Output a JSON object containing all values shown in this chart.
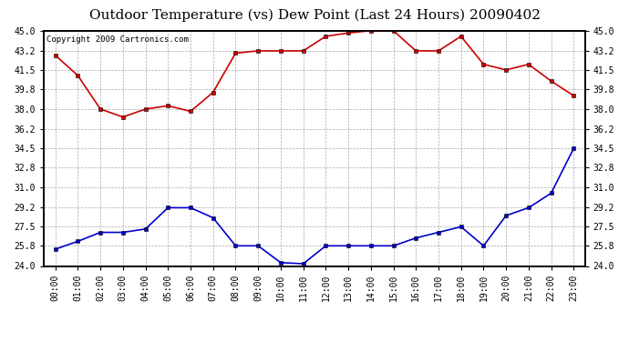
{
  "title": "Outdoor Temperature (vs) Dew Point (Last 24 Hours) 20090402",
  "copyright_text": "Copyright 2009 Cartronics.com",
  "x_labels": [
    "00:00",
    "01:00",
    "02:00",
    "03:00",
    "04:00",
    "05:00",
    "06:00",
    "07:00",
    "08:00",
    "09:00",
    "10:00",
    "11:00",
    "12:00",
    "13:00",
    "14:00",
    "15:00",
    "16:00",
    "17:00",
    "18:00",
    "19:00",
    "20:00",
    "21:00",
    "22:00",
    "23:00"
  ],
  "temp_color": "#cc0000",
  "dew_color": "#0000cc",
  "background_color": "#ffffff",
  "grid_color": "#aaaaaa",
  "ylim": [
    24.0,
    45.0
  ],
  "yticks": [
    24.0,
    25.8,
    27.5,
    29.2,
    31.0,
    32.8,
    34.5,
    36.2,
    38.0,
    39.8,
    41.5,
    43.2,
    45.0
  ],
  "ytick_labels": [
    "24.0",
    "25.8",
    "27.5",
    "29.2",
    "31.0",
    "32.8",
    "34.5",
    "36.2",
    "38.0",
    "39.8",
    "41.5",
    "43.2",
    "45.0"
  ],
  "temp_data": [
    42.8,
    41.0,
    38.0,
    37.3,
    38.0,
    38.3,
    37.8,
    39.5,
    43.0,
    43.2,
    43.2,
    43.2,
    44.5,
    44.8,
    45.0,
    45.0,
    43.2,
    43.2,
    44.5,
    42.0,
    41.5,
    42.0,
    40.5,
    39.2
  ],
  "dew_data": [
    25.5,
    26.2,
    27.0,
    27.0,
    27.3,
    29.2,
    29.2,
    28.3,
    25.8,
    25.8,
    24.3,
    24.2,
    25.8,
    25.8,
    25.8,
    25.8,
    26.5,
    27.0,
    27.5,
    25.8,
    28.5,
    29.2,
    30.5,
    34.5
  ],
  "marker": "s",
  "marker_size": 3,
  "line_width": 1.2,
  "title_fontsize": 11,
  "tick_fontsize": 7,
  "copyright_fontsize": 6.5
}
